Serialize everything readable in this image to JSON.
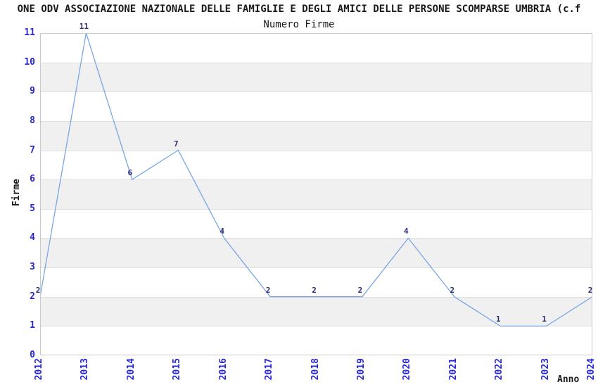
{
  "chart_data": {
    "type": "line",
    "title": "ONE ODV ASSOCIAZIONE NAZIONALE DELLE FAMIGLIE E DEGLI AMICI DELLE PERSONE SCOMPARSE UMBRIA (c.f",
    "subtitle": "Numero Firme",
    "xlabel": "Anno",
    "ylabel": "Firme",
    "categories": [
      "2012",
      "2013",
      "2014",
      "2015",
      "2016",
      "2017",
      "2018",
      "2019",
      "2020",
      "2021",
      "2022",
      "2023",
      "2024"
    ],
    "values": [
      2,
      11,
      6,
      7,
      4,
      2,
      2,
      2,
      4,
      2,
      1,
      1,
      2
    ],
    "ylim": [
      0,
      11
    ],
    "yticks": [
      0,
      1,
      2,
      3,
      4,
      5,
      6,
      7,
      8,
      9,
      10,
      11
    ],
    "grid": "alternating-horizontal-bands",
    "legend": "none",
    "point_labels": true,
    "colors": {
      "line": "#78a6e4",
      "tick_labels": "#2626d4",
      "point_labels": "#2b2b70",
      "band": "#f0f0f0",
      "gridline": "#e0e0e0",
      "plot_border": "#c9c9c9",
      "text": "#1a1a1a",
      "background": "#ffffff"
    }
  }
}
